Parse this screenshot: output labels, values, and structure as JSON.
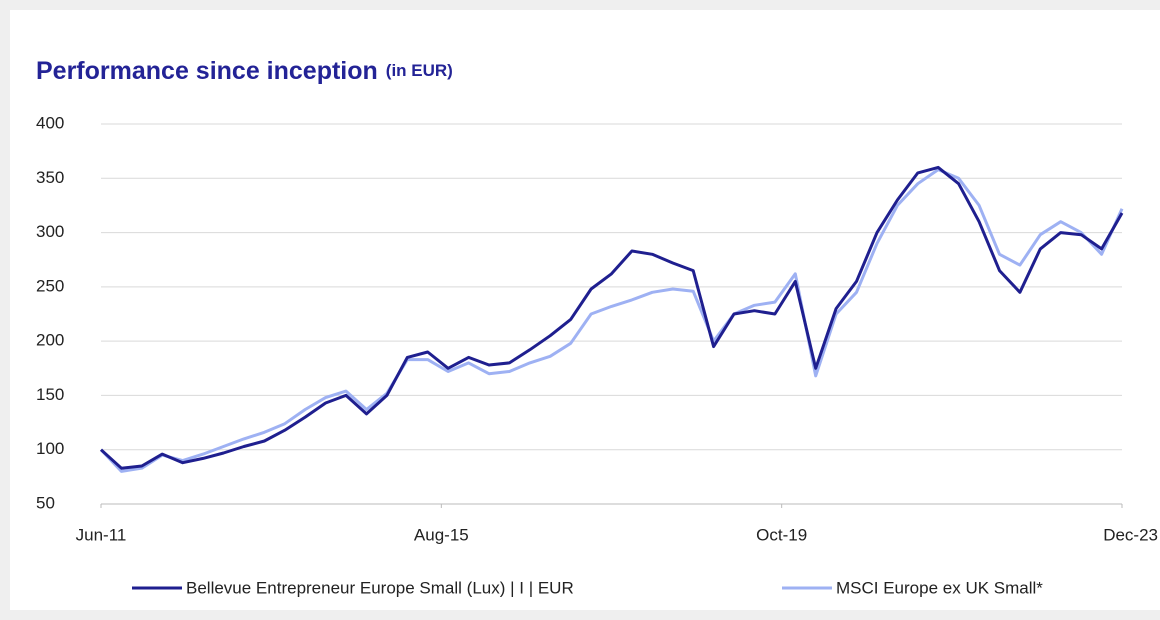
{
  "chart_data": {
    "type": "line",
    "title": "Performance since inception",
    "subtitle": "(in EUR)",
    "x": [
      "2011-06",
      "2011-09",
      "2011-12",
      "2012-03",
      "2012-06",
      "2012-09",
      "2012-12",
      "2013-03",
      "2013-06",
      "2013-09",
      "2013-12",
      "2014-03",
      "2014-06",
      "2014-09",
      "2014-12",
      "2015-03",
      "2015-06",
      "2015-09",
      "2015-12",
      "2016-03",
      "2016-06",
      "2016-09",
      "2016-12",
      "2017-03",
      "2017-06",
      "2017-09",
      "2017-12",
      "2018-03",
      "2018-06",
      "2018-09",
      "2018-12",
      "2019-03",
      "2019-06",
      "2019-09",
      "2019-12",
      "2020-03",
      "2020-06",
      "2020-09",
      "2020-12",
      "2021-03",
      "2021-06",
      "2021-09",
      "2021-12",
      "2022-03",
      "2022-06",
      "2022-09",
      "2022-12",
      "2023-03",
      "2023-06",
      "2023-09",
      "2023-12"
    ],
    "series": [
      {
        "name": "Bellevue Entrepreneur Europe Small (Lux) | I | EUR",
        "color": "#1f1f8f",
        "values": [
          100,
          83,
          85,
          96,
          88,
          92,
          97,
          103,
          108,
          118,
          130,
          143,
          150,
          133,
          150,
          185,
          190,
          175,
          185,
          178,
          180,
          192,
          205,
          220,
          248,
          262,
          283,
          280,
          272,
          265,
          195,
          225,
          228,
          225,
          255,
          175,
          230,
          255,
          300,
          330,
          355,
          360,
          345,
          310,
          265,
          245,
          285,
          300,
          298,
          285,
          318
        ]
      },
      {
        "name": "MSCI Europe ex UK Small*",
        "color": "#9eb1f3",
        "values": [
          100,
          80,
          83,
          95,
          90,
          96,
          103,
          110,
          116,
          124,
          137,
          148,
          154,
          137,
          152,
          183,
          183,
          172,
          180,
          170,
          172,
          180,
          186,
          198,
          225,
          232,
          238,
          245,
          248,
          246,
          200,
          225,
          233,
          236,
          262,
          168,
          225,
          245,
          290,
          325,
          345,
          358,
          350,
          325,
          280,
          270,
          298,
          310,
          300,
          280,
          322
        ]
      }
    ],
    "xlim": [
      "2011-06",
      "2023-12"
    ],
    "xticks": [
      {
        "value": "2011-06",
        "label": "Jun-11"
      },
      {
        "value": "2015-08",
        "label": "Aug-15"
      },
      {
        "value": "2019-10",
        "label": "Oct-19"
      },
      {
        "value": "2023-12",
        "label": "Dec-23"
      }
    ],
    "ylim": [
      50,
      400
    ],
    "yticks": [
      50,
      100,
      150,
      200,
      250,
      300,
      350,
      400
    ],
    "grid": true,
    "legend": "bottom"
  }
}
